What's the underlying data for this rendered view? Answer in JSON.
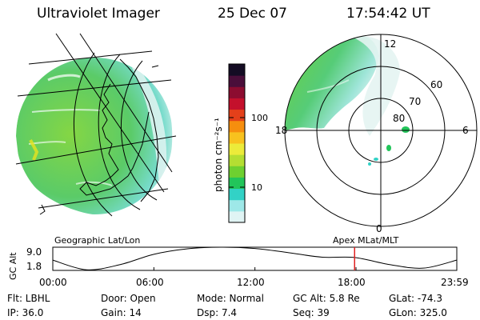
{
  "header": {
    "instrument": "Ultraviolet Imager",
    "date": "25 Dec 07",
    "time": "17:54:42 UT"
  },
  "left_panel": {
    "caption": "Geographic Lat/Lon"
  },
  "right_panel": {
    "caption": "Apex MLat/MLT",
    "mlt_labels": [
      "12",
      "18",
      "6",
      "0"
    ],
    "lat_labels": [
      "60",
      "70",
      "80"
    ]
  },
  "colorbar": {
    "label": "photon cm⁻²s⁻¹",
    "ticks": [
      "100",
      "10"
    ],
    "colors": [
      "#e0f4f4",
      "#9ee8e8",
      "#32d2c6",
      "#22c55a",
      "#6ed030",
      "#b4de32",
      "#eceb3a",
      "#f8c21e",
      "#f68e0e",
      "#e4401a",
      "#c4102c",
      "#8c0c30",
      "#4a0e3a",
      "#140c24"
    ]
  },
  "timeline": {
    "ylabel": "GC Alt",
    "x_labels": [
      "00:00",
      "06:00",
      "12:00",
      "18:00",
      "23:59"
    ],
    "y_labels": [
      "9.0",
      "1.8"
    ]
  },
  "status": {
    "row1": [
      "Flt: LBHL",
      "Door: Open",
      "Mode: Normal",
      "GC Alt: 5.8 Re",
      "GLat: -74.3"
    ],
    "row2": [
      "IP: 36.0",
      "Gain: 14",
      "Dsp: 7.4",
      "Seq: 39",
      "GLon: 325.0"
    ]
  },
  "chart_data": {
    "type": "line",
    "title": "GC Alt",
    "xlabel": "",
    "ylabel": "GC Alt",
    "x": [
      "00:00",
      "02:00",
      "04:00",
      "06:00",
      "08:00",
      "10:00",
      "12:00",
      "14:00",
      "16:00",
      "17:55",
      "20:00",
      "22:00",
      "23:59"
    ],
    "y": [
      5.0,
      2.0,
      3.6,
      6.8,
      8.5,
      9.0,
      8.6,
      7.3,
      5.9,
      5.8,
      3.6,
      2.5,
      5.0
    ],
    "ylim": [
      1.8,
      9.0
    ],
    "current_time": "17:55",
    "colors": {
      "line": "#000000",
      "marker": "#e02020"
    }
  }
}
